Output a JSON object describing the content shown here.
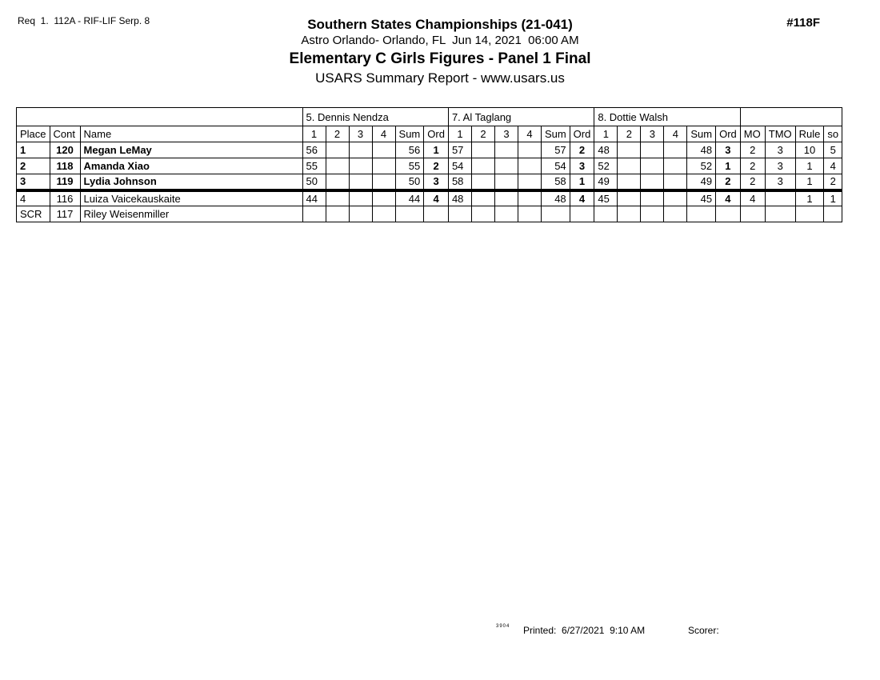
{
  "page": {
    "req_label": "Req  1.  112A - RIF-LIF Serp. 8",
    "doc_number": "#118F"
  },
  "header": {
    "title": "Southern States Championships (21-041)",
    "venue_date": "Astro Orlando- Orlando, FL  Jun 14, 2021  06:00 AM",
    "event_title": "Elementary C Girls Figures - Panel 1 Final",
    "report_line": "USARS Summary Report - www.usars.us"
  },
  "table": {
    "judge_panels": [
      "5.  Dennis Nendza",
      "7.  Al Taglang",
      "8.  Dottie Walsh"
    ],
    "left_columns": [
      "Place",
      "Cont",
      "Name"
    ],
    "judge_subcolumns": [
      "1",
      "2",
      "3",
      "4",
      "Sum",
      "Ord"
    ],
    "right_columns": [
      "MO",
      "TMO",
      "Rule",
      "so"
    ],
    "rows": [
      {
        "place": "1",
        "cont": "120",
        "name": "Megan LeMay",
        "bold": true,
        "thick_bottom": false,
        "judges": [
          {
            "scores": [
              "56",
              "",
              "",
              ""
            ],
            "sum": "56",
            "ord": "1"
          },
          {
            "scores": [
              "57",
              "",
              "",
              ""
            ],
            "sum": "57",
            "ord": "2"
          },
          {
            "scores": [
              "48",
              "",
              "",
              ""
            ],
            "sum": "48",
            "ord": "3"
          }
        ],
        "mo": "2",
        "tmo": "3",
        "rule": "10",
        "so": "5"
      },
      {
        "place": "2",
        "cont": "118",
        "name": "Amanda Xiao",
        "bold": true,
        "thick_bottom": false,
        "judges": [
          {
            "scores": [
              "55",
              "",
              "",
              ""
            ],
            "sum": "55",
            "ord": "2"
          },
          {
            "scores": [
              "54",
              "",
              "",
              ""
            ],
            "sum": "54",
            "ord": "3"
          },
          {
            "scores": [
              "52",
              "",
              "",
              ""
            ],
            "sum": "52",
            "ord": "1"
          }
        ],
        "mo": "2",
        "tmo": "3",
        "rule": "1",
        "so": "4"
      },
      {
        "place": "3",
        "cont": "119",
        "name": "Lydia Johnson",
        "bold": true,
        "thick_bottom": true,
        "judges": [
          {
            "scores": [
              "50",
              "",
              "",
              ""
            ],
            "sum": "50",
            "ord": "3"
          },
          {
            "scores": [
              "58",
              "",
              "",
              ""
            ],
            "sum": "58",
            "ord": "1"
          },
          {
            "scores": [
              "49",
              "",
              "",
              ""
            ],
            "sum": "49",
            "ord": "2"
          }
        ],
        "mo": "2",
        "tmo": "3",
        "rule": "1",
        "so": "2"
      },
      {
        "place": "4",
        "cont": "116",
        "name": "Luiza Vaicekauskaite",
        "bold": false,
        "thick_bottom": false,
        "judges": [
          {
            "scores": [
              "44",
              "",
              "",
              ""
            ],
            "sum": "44",
            "ord": "4"
          },
          {
            "scores": [
              "48",
              "",
              "",
              ""
            ],
            "sum": "48",
            "ord": "4"
          },
          {
            "scores": [
              "45",
              "",
              "",
              ""
            ],
            "sum": "45",
            "ord": "4"
          }
        ],
        "mo": "4",
        "tmo": "",
        "rule": "1",
        "so": "1"
      },
      {
        "place": "SCR",
        "cont": "117",
        "name": "Riley Weisenmiller",
        "bold": false,
        "thick_bottom": false,
        "judges": [
          {
            "scores": [
              "",
              "",
              "",
              ""
            ],
            "sum": "",
            "ord": ""
          },
          {
            "scores": [
              "",
              "",
              "",
              ""
            ],
            "sum": "",
            "ord": ""
          },
          {
            "scores": [
              "",
              "",
              "",
              ""
            ],
            "sum": "",
            "ord": ""
          }
        ],
        "mo": "",
        "tmo": "",
        "rule": "",
        "so": ""
      }
    ]
  },
  "footer": {
    "version_code": "3904",
    "printed_label": "Printed:",
    "printed_value": "6/27/2021  9:10 AM",
    "scorer_label": "Scorer:"
  },
  "colors": {
    "text": "#000000",
    "background": "#ffffff",
    "border": "#000000"
  }
}
